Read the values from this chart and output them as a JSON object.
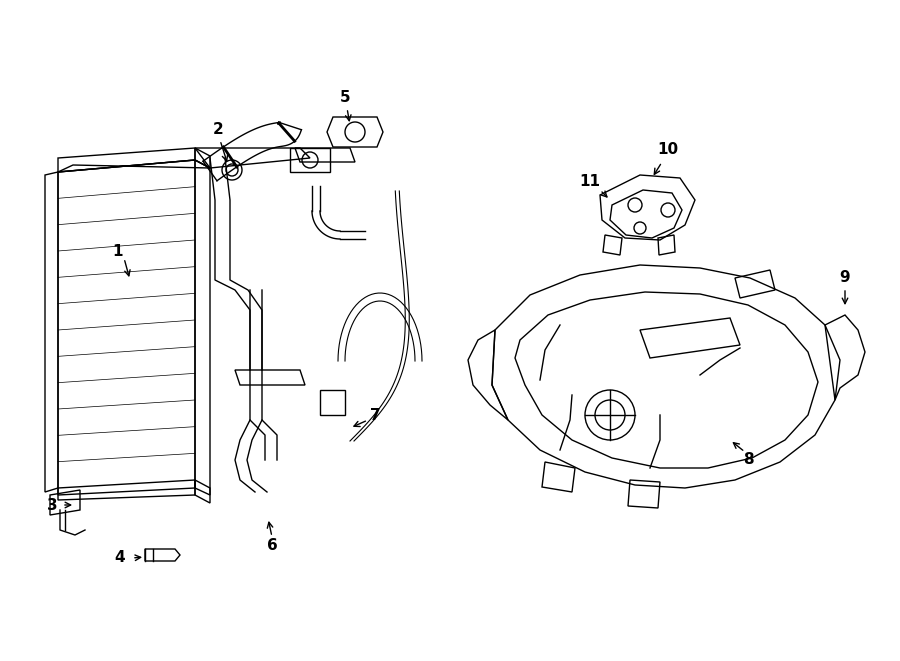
{
  "bg_color": "#ffffff",
  "line_color": "#000000",
  "figsize": [
    9.0,
    6.61
  ],
  "dpi": 100,
  "lw": 1.0
}
